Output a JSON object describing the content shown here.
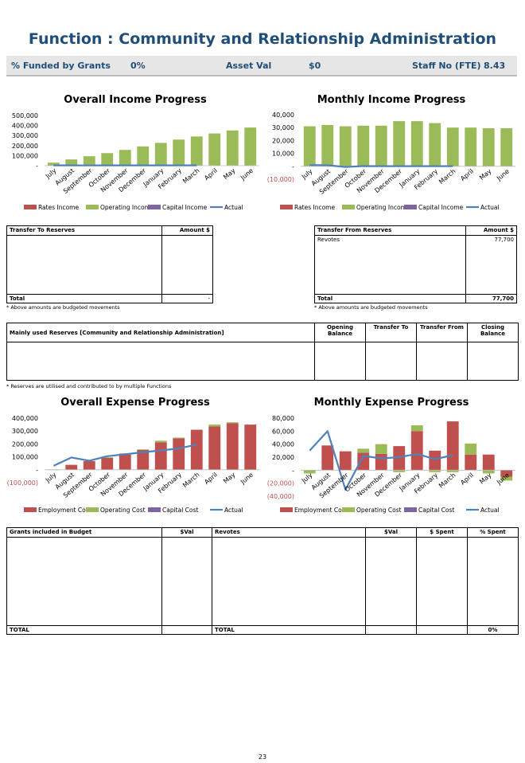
{
  "title": "Function : Community and Relationship Administration",
  "summary": [
    {
      "label": "% Funded by Grants",
      "value": "0%"
    },
    {
      "label": "Asset Val",
      "value": "$0"
    },
    {
      "label": "Staff No (FTE)",
      "value": "8.43"
    }
  ],
  "chart_data": [
    {
      "type": "bar",
      "title": "Overall Income Progress",
      "categories": [
        "July",
        "August",
        "September",
        "October",
        "November",
        "December",
        "January",
        "February",
        "March",
        "April",
        "May",
        "June"
      ],
      "series": [
        {
          "name": "Rates Income",
          "type": "bar",
          "color": "#c0504d",
          "values": [
            0,
            0,
            0,
            0,
            0,
            0,
            0,
            0,
            0,
            0,
            0,
            0
          ]
        },
        {
          "name": "Operating Income",
          "type": "bar",
          "color": "#9bbb59",
          "values": [
            30000,
            62000,
            94000,
            125000,
            157000,
            192000,
            227000,
            260000,
            291000,
            321000,
            351000,
            380000
          ]
        },
        {
          "name": "Capital Income",
          "type": "bar",
          "color": "#8064a2",
          "values": [
            0,
            0,
            0,
            0,
            0,
            0,
            0,
            0,
            0,
            0,
            0,
            0
          ]
        },
        {
          "name": "Actual",
          "type": "line",
          "color": "#4f81bd",
          "values": [
            3000,
            3000,
            2000,
            3000,
            3000,
            3000,
            3000,
            3000,
            3000,
            null,
            null,
            null
          ]
        }
      ],
      "ylim": [
        0,
        500000
      ],
      "yticks": [
        {
          "value": 0,
          "label": "-"
        },
        {
          "value": 100000,
          "label": "100,000"
        },
        {
          "value": 200000,
          "label": "200,000"
        },
        {
          "value": 300000,
          "label": "300,000"
        },
        {
          "value": 400000,
          "label": "400,000"
        },
        {
          "value": 500000,
          "label": "500,000"
        }
      ]
    },
    {
      "type": "bar",
      "title": "Monthly Income Progress",
      "categories": [
        "July",
        "August",
        "September",
        "October",
        "November",
        "December",
        "January",
        "February",
        "March",
        "April",
        "May",
        "June"
      ],
      "series": [
        {
          "name": "Rates Income",
          "type": "bar",
          "color": "#c0504d",
          "values": [
            0,
            0,
            0,
            0,
            0,
            0,
            0,
            0,
            0,
            0,
            0,
            0
          ]
        },
        {
          "name": "Operating Income",
          "type": "bar",
          "color": "#9bbb59",
          "values": [
            31000,
            32000,
            31000,
            31500,
            31500,
            35000,
            35000,
            33500,
            30000,
            30000,
            29500,
            29500
          ]
        },
        {
          "name": "Capital Income",
          "type": "bar",
          "color": "#8064a2",
          "values": [
            0,
            0,
            0,
            0,
            0,
            0,
            0,
            0,
            0,
            0,
            0,
            0
          ]
        },
        {
          "name": "Actual",
          "type": "line",
          "color": "#4f81bd",
          "values": [
            1000,
            800,
            -500,
            200,
            100,
            100,
            100,
            100,
            100,
            null,
            null,
            null
          ]
        }
      ],
      "ylim": [
        -10000,
        40000
      ],
      "yticks": [
        {
          "value": -10000,
          "label": "(10,000)"
        },
        {
          "value": 0,
          "label": "-"
        },
        {
          "value": 10000,
          "label": "10,000"
        },
        {
          "value": 20000,
          "label": "20,000"
        },
        {
          "value": 30000,
          "label": "30,000"
        },
        {
          "value": 40000,
          "label": "40,000"
        }
      ]
    },
    {
      "type": "bar",
      "title": "Overall Expense Progress",
      "categories": [
        "July",
        "August",
        "September",
        "October",
        "November",
        "December",
        "January",
        "February",
        "March",
        "April",
        "May",
        "June"
      ],
      "series": [
        {
          "name": "Employment Cost",
          "type": "bar",
          "color": "#c0504d",
          "values": [
            2000,
            38000,
            67000,
            92000,
            117000,
            153000,
            213000,
            244000,
            310000,
            335000,
            360000,
            350000
          ]
        },
        {
          "name": "Operating Cost",
          "type": "bar",
          "color": "#9bbb59",
          "values": [
            -3000,
            0,
            0,
            5000,
            10000,
            5000,
            12000,
            5000,
            0,
            15000,
            8000,
            0
          ]
        },
        {
          "name": "Capital Cost",
          "type": "bar",
          "color": "#8064a2",
          "values": [
            0,
            0,
            0,
            0,
            0,
            0,
            0,
            0,
            0,
            0,
            0,
            0
          ]
        },
        {
          "name": "Actual",
          "type": "line",
          "color": "#4f81bd",
          "values": [
            30000,
            95000,
            70000,
            105000,
            120000,
            135000,
            150000,
            165000,
            195000,
            null,
            null,
            null
          ]
        }
      ],
      "ylim": [
        -100000,
        400000
      ],
      "yticks": [
        {
          "value": -100000,
          "label": "(100,000)"
        },
        {
          "value": 0,
          "label": "-"
        },
        {
          "value": 100000,
          "label": "100,000"
        },
        {
          "value": 200000,
          "label": "200,000"
        },
        {
          "value": 300000,
          "label": "300,000"
        },
        {
          "value": 400000,
          "label": "400,000"
        }
      ]
    },
    {
      "type": "bar",
      "title": "Monthly Expense Progress",
      "categories": [
        "July",
        "August",
        "September",
        "October",
        "November",
        "December",
        "January",
        "February",
        "March",
        "April",
        "May",
        "June"
      ],
      "series": [
        {
          "name": "Employment Cost",
          "type": "bar",
          "color": "#c0504d",
          "values": [
            0,
            38000,
            29000,
            27000,
            25000,
            37000,
            60000,
            30000,
            75000,
            24000,
            24000,
            -10000
          ]
        },
        {
          "name": "Operating Cost",
          "type": "bar",
          "color": "#9bbb59",
          "values": [
            -5000,
            0,
            0,
            6000,
            15000,
            -3000,
            9000,
            -3000,
            -3000,
            17000,
            -5000,
            -6000
          ]
        },
        {
          "name": "Capital Cost",
          "type": "bar",
          "color": "#8064a2",
          "values": [
            0,
            0,
            0,
            0,
            0,
            0,
            0,
            0,
            0,
            0,
            0,
            0
          ]
        },
        {
          "name": "Actual",
          "type": "line",
          "color": "#4f81bd",
          "values": [
            30000,
            60000,
            -30000,
            22000,
            18000,
            20000,
            25000,
            17000,
            23000,
            null,
            null,
            null
          ]
        }
      ],
      "ylim": [
        -40000,
        80000
      ],
      "yticks": [
        {
          "value": -40000,
          "label": "(40,000)"
        },
        {
          "value": -20000,
          "label": "(20,000)"
        },
        {
          "value": 0,
          "label": "-"
        },
        {
          "value": 20000,
          "label": "20,000"
        },
        {
          "value": 40000,
          "label": "40,000"
        },
        {
          "value": 60000,
          "label": "60,000"
        },
        {
          "value": 80000,
          "label": "80,000"
        }
      ]
    }
  ],
  "transfer_to": {
    "headers": [
      "Transfer To Reserves",
      "Amount $"
    ],
    "total": [
      "Total",
      "-"
    ],
    "note": "* Above amounts are budgeted movements"
  },
  "transfer_from": {
    "headers": [
      "Transfer From Reserves",
      "Amount $"
    ],
    "rows": [
      [
        "Revotes",
        "77,700"
      ]
    ],
    "total": [
      "Total",
      "77,700"
    ],
    "note": "* Above amounts are budgeted movements"
  },
  "reserves": {
    "headers": [
      "Mainly used Reserves [Community and Relationship Administration]",
      "Opening Balance",
      "Transfer To",
      "Transfer From",
      "Closing Balance"
    ],
    "note": "* Reserves are utilised and contributed to by multiple Functions"
  },
  "grants": {
    "headers": [
      "Grants included in Budget",
      "$Val",
      "Revotes",
      "$Val",
      "$ Spent",
      "% Spent"
    ],
    "total": [
      "TOTAL",
      "TOTAL",
      "0%"
    ]
  },
  "page_number": "23"
}
